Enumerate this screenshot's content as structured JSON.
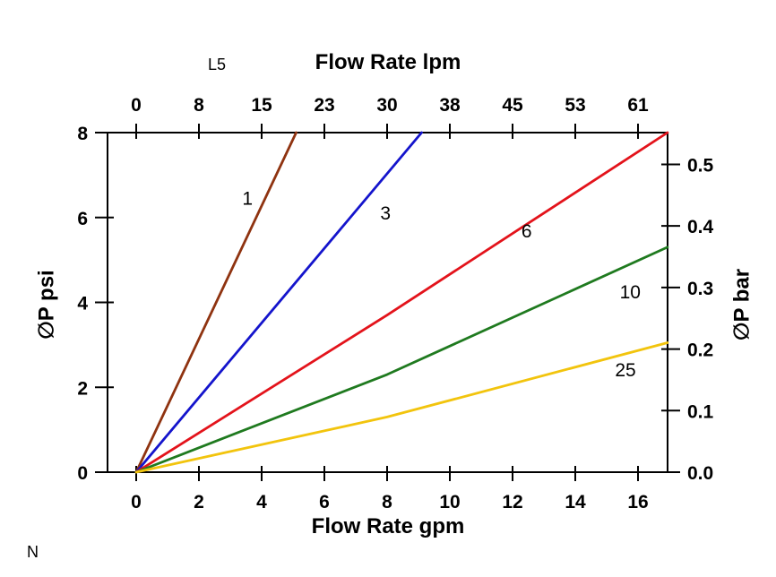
{
  "annotations": {
    "top_left_code": "L5",
    "bottom_left_code": "N"
  },
  "chart_data": {
    "type": "line",
    "axes": {
      "x_bottom": {
        "label": "Flow Rate gpm",
        "tick_values": [
          0,
          2,
          4,
          6,
          8,
          10,
          12,
          14,
          16
        ],
        "tick_labels": [
          "0",
          "2",
          "4",
          "6",
          "8",
          "10",
          "12",
          "14",
          "16"
        ],
        "range": [
          0,
          16
        ]
      },
      "x_top": {
        "label": "Flow Rate lpm",
        "tick_labels": [
          "0",
          "8",
          "15",
          "23",
          "30",
          "38",
          "45",
          "53",
          "61"
        ]
      },
      "y_left": {
        "label": "∅P psi",
        "tick_values": [
          0,
          2,
          4,
          6,
          8
        ],
        "tick_labels": [
          "0",
          "2",
          "4",
          "6",
          "8"
        ],
        "range": [
          0,
          8
        ]
      },
      "y_right": {
        "label": "∅P bar",
        "tick_values": [
          0.0,
          0.1,
          0.2,
          0.3,
          0.4,
          0.5
        ],
        "tick_labels": [
          "0.0",
          "0.1",
          "0.2",
          "0.3",
          "0.4",
          "0.5"
        ]
      }
    },
    "series": [
      {
        "name": "1",
        "label": "1",
        "color": "#8f3310",
        "points_gpm_psi": [
          [
            0,
            0
          ],
          [
            5.1,
            8
          ]
        ],
        "label_at": [
          3.55,
          6.3
        ]
      },
      {
        "name": "3",
        "label": "3",
        "color": "#1414cc",
        "points_gpm_psi": [
          [
            0,
            0
          ],
          [
            9.1,
            8
          ]
        ],
        "label_at": [
          7.95,
          5.95
        ]
      },
      {
        "name": "6",
        "label": "6",
        "color": "#e3131b",
        "points_gpm_psi": [
          [
            0,
            0
          ],
          [
            8,
            3.7
          ],
          [
            16.94,
            8
          ]
        ],
        "label_at": [
          12.45,
          5.53
        ]
      },
      {
        "name": "10",
        "label": "10",
        "color": "#1f7a1f",
        "points_gpm_psi": [
          [
            0,
            0
          ],
          [
            8,
            2.3
          ],
          [
            16.94,
            5.3
          ]
        ],
        "label_at": [
          15.75,
          4.1
        ]
      },
      {
        "name": "25",
        "label": "25",
        "color": "#f2c40d",
        "points_gpm_psi": [
          [
            0,
            0
          ],
          [
            8,
            1.3
          ],
          [
            16.94,
            3.05
          ]
        ],
        "label_at": [
          15.6,
          2.26
        ]
      }
    ]
  }
}
